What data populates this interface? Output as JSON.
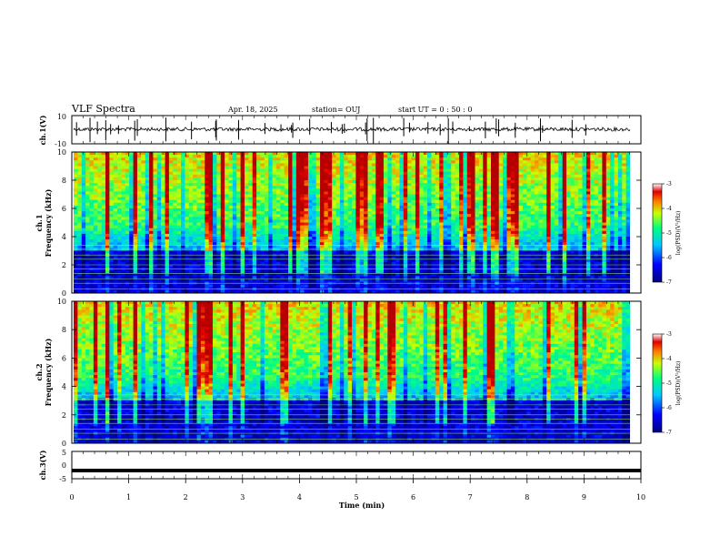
{
  "header": {
    "title": "VLF Spectra",
    "date": "Apr. 18, 2025",
    "station": "station= OUJ",
    "start_ut": "start  UT =   0 : 50 : 0"
  },
  "chart_data": [
    {
      "type": "line",
      "panel": "ch1-waveform",
      "ylabel": "ch.1(V)",
      "ylim": [
        -10,
        10
      ],
      "y_ticks": [
        "10",
        "-10"
      ],
      "xlim": [
        0,
        10
      ],
      "description_series": "noisy waveform centered near 0 V with sferic spikes"
    },
    {
      "type": "heatmap",
      "panel": "ch1-spectrogram",
      "ylabel": "ch.1\nFrequency (kHz)",
      "ylabel_lines": [
        "ch.1",
        "Frequency (kHz)"
      ],
      "ylim": [
        0,
        10
      ],
      "y_ticks": [
        "0",
        "2",
        "4",
        "6",
        "8",
        "10"
      ],
      "xlim": [
        0,
        10
      ],
      "colorbar": {
        "label": "log(PSD)(V²/Hz)",
        "range": [
          -7,
          -3
        ],
        "ticks": [
          "-3",
          "-4",
          "-5",
          "-6",
          "-7"
        ]
      }
    },
    {
      "type": "heatmap",
      "panel": "ch2-spectrogram",
      "ylabel": "ch.2\nFrequency (kHz)",
      "ylabel_lines": [
        "ch.2",
        "Frequency (kHz)"
      ],
      "ylim": [
        0,
        10
      ],
      "y_ticks": [
        "0",
        "2",
        "4",
        "6",
        "8",
        "10"
      ],
      "xlim": [
        0,
        10
      ],
      "colorbar": {
        "label": "log(PSD)(V²/Hz)",
        "range": [
          -7,
          -3
        ],
        "ticks": [
          "-3",
          "-4",
          "-5",
          "-6",
          "-7"
        ]
      }
    },
    {
      "type": "line",
      "panel": "ch3-waveform",
      "ylabel": "ch.3(V)",
      "ylim": [
        -5,
        5
      ],
      "y_ticks": [
        "5",
        "0",
        "-5"
      ],
      "xlim": [
        0,
        10
      ],
      "values_constant": -2
    }
  ],
  "xaxis": {
    "label": "Time (min)",
    "ticks": [
      "0",
      "1",
      "2",
      "3",
      "4",
      "5",
      "6",
      "7",
      "8",
      "9",
      "10"
    ]
  }
}
